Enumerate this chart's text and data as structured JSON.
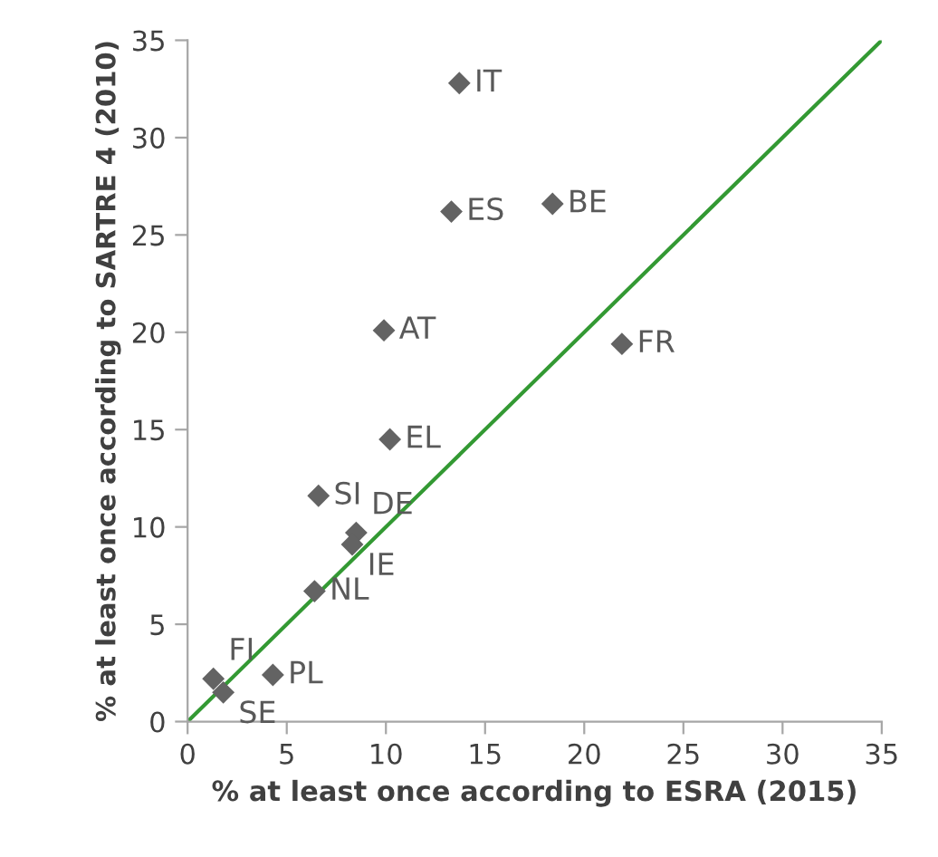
{
  "chart_data": {
    "type": "scatter",
    "xlabel": "% at least once according to ESRA (2015)",
    "ylabel": "% at least once according to SARTRE 4 (2010)",
    "xlim": [
      0,
      35
    ],
    "ylim": [
      0,
      35
    ],
    "xticks": [
      0,
      5,
      10,
      15,
      20,
      25,
      30,
      35
    ],
    "yticks": [
      0,
      5,
      10,
      15,
      20,
      25,
      30,
      35
    ],
    "series": [
      {
        "color": "#636363",
        "marker": "diamond",
        "x": [
          13.7,
          13.3,
          18.4,
          9.9,
          21.9,
          10.2,
          6.6,
          8.5,
          8.3,
          6.4,
          1.3,
          1.8,
          4.3
        ],
        "values": [
          32.8,
          26.2,
          26.6,
          20.1,
          19.4,
          14.5,
          11.6,
          9.7,
          9.1,
          6.7,
          2.2,
          1.5,
          2.4
        ]
      },
      {
        "type": "line",
        "color": "#339933",
        "marker": "none",
        "line_style": "solid",
        "x": [
          0,
          35
        ],
        "values": [
          0,
          35
        ]
      }
    ],
    "annotations": [
      {
        "text": "IT",
        "x": 13.7,
        "y": 32.8
      },
      {
        "text": "ES",
        "x": 13.3,
        "y": 26.2
      },
      {
        "text": "BE",
        "x": 18.4,
        "y": 26.6
      },
      {
        "text": "AT",
        "x": 9.9,
        "y": 20.1
      },
      {
        "text": "FR",
        "x": 21.9,
        "y": 19.4
      },
      {
        "text": "EL",
        "x": 10.2,
        "y": 14.5
      },
      {
        "text": "SI",
        "x": 6.6,
        "y": 11.6
      },
      {
        "text": "DE",
        "x": 8.5,
        "y": 9.7
      },
      {
        "text": "IE",
        "x": 8.3,
        "y": 9.1
      },
      {
        "text": "NL",
        "x": 6.4,
        "y": 6.7
      },
      {
        "text": "FI",
        "x": 1.3,
        "y": 2.2
      },
      {
        "text": "SE",
        "x": 1.8,
        "y": 1.5
      },
      {
        "text": "PL",
        "x": 4.3,
        "y": 2.4
      }
    ]
  }
}
